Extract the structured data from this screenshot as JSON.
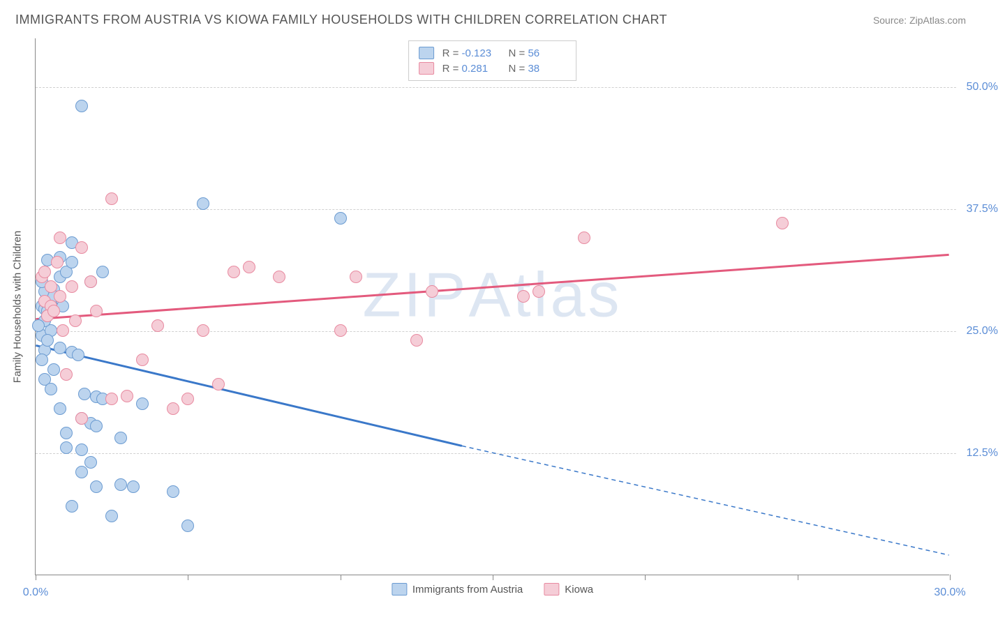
{
  "title": "IMMIGRANTS FROM AUSTRIA VS KIOWA FAMILY HOUSEHOLDS WITH CHILDREN CORRELATION CHART",
  "source": "Source: ZipAtlas.com",
  "watermark": "ZIPAtlas",
  "chart": {
    "type": "scatter",
    "y_axis_title": "Family Households with Children",
    "xlim": [
      0,
      30
    ],
    "ylim": [
      0,
      55
    ],
    "x_ticks": [
      0,
      5,
      10,
      15,
      20,
      25,
      30
    ],
    "x_tick_labels": {
      "0": "0.0%",
      "30": "30.0%"
    },
    "y_gridlines": [
      12.5,
      25.0,
      37.5,
      50.0
    ],
    "y_tick_labels": [
      "12.5%",
      "25.0%",
      "37.5%",
      "50.0%"
    ],
    "grid_color": "#d0d0d0",
    "axis_color": "#888888",
    "tick_label_color": "#5b8dd6",
    "background_color": "#ffffff",
    "point_radius": 9,
    "series": [
      {
        "name": "Immigrants from Austria",
        "marker_fill": "#bcd4ee",
        "marker_stroke": "#6b9bd1",
        "line_color": "#3a78c9",
        "line_width": 3,
        "R": "-0.123",
        "N": "56",
        "trend": {
          "x1": 0,
          "y1": 23.5,
          "x2": 14,
          "y2": 13.2,
          "dash_from_x": 14,
          "dash_to_x": 30,
          "dash_to_y": 2.0
        },
        "points": [
          [
            0.2,
            27.5
          ],
          [
            0.3,
            27.2
          ],
          [
            0.4,
            27.0
          ],
          [
            0.3,
            28.0
          ],
          [
            0.5,
            27.8
          ],
          [
            0.3,
            29.0
          ],
          [
            0.6,
            29.2
          ],
          [
            0.8,
            30.5
          ],
          [
            1.0,
            31.0
          ],
          [
            0.4,
            32.2
          ],
          [
            1.2,
            32.0
          ],
          [
            1.8,
            30.0
          ],
          [
            0.2,
            24.5
          ],
          [
            0.5,
            25.0
          ],
          [
            0.3,
            23.0
          ],
          [
            0.8,
            23.2
          ],
          [
            1.2,
            22.8
          ],
          [
            1.4,
            22.5
          ],
          [
            0.6,
            21.0
          ],
          [
            0.3,
            20.0
          ],
          [
            1.6,
            18.5
          ],
          [
            2.0,
            18.2
          ],
          [
            2.2,
            18.0
          ],
          [
            1.5,
            16.0
          ],
          [
            1.8,
            15.5
          ],
          [
            2.0,
            15.2
          ],
          [
            2.8,
            14.0
          ],
          [
            1.0,
            13.0
          ],
          [
            1.5,
            12.8
          ],
          [
            1.8,
            11.5
          ],
          [
            2.0,
            9.0
          ],
          [
            2.8,
            9.2
          ],
          [
            3.2,
            9.0
          ],
          [
            1.2,
            7.0
          ],
          [
            2.5,
            6.0
          ],
          [
            5.0,
            5.0
          ],
          [
            4.5,
            8.5
          ],
          [
            1.5,
            48.0
          ],
          [
            5.5,
            38.0
          ],
          [
            10.0,
            36.5
          ],
          [
            1.2,
            34.0
          ],
          [
            2.2,
            31.0
          ],
          [
            0.8,
            32.5
          ],
          [
            0.3,
            26.0
          ],
          [
            0.1,
            25.5
          ],
          [
            0.5,
            19.0
          ],
          [
            0.8,
            17.0
          ],
          [
            1.0,
            14.5
          ],
          [
            1.5,
            10.5
          ],
          [
            3.5,
            17.5
          ],
          [
            0.4,
            26.5
          ],
          [
            0.6,
            28.5
          ],
          [
            0.2,
            30.0
          ],
          [
            0.9,
            27.5
          ],
          [
            0.4,
            24.0
          ],
          [
            0.2,
            22.0
          ]
        ]
      },
      {
        "name": "Kiowa",
        "marker_fill": "#f5cdd7",
        "marker_stroke": "#e88aa0",
        "line_color": "#e35a7d",
        "line_width": 3,
        "R": "0.281",
        "N": "38",
        "trend": {
          "x1": 0,
          "y1": 26.2,
          "x2": 30,
          "y2": 32.8
        },
        "points": [
          [
            0.3,
            28.0
          ],
          [
            0.5,
            27.5
          ],
          [
            0.8,
            28.5
          ],
          [
            0.4,
            26.5
          ],
          [
            0.6,
            27.0
          ],
          [
            1.2,
            29.5
          ],
          [
            1.5,
            33.5
          ],
          [
            2.5,
            38.5
          ],
          [
            1.8,
            30.0
          ],
          [
            0.9,
            25.0
          ],
          [
            1.0,
            20.5
          ],
          [
            1.5,
            16.0
          ],
          [
            2.5,
            18.0
          ],
          [
            3.0,
            18.3
          ],
          [
            3.5,
            22.0
          ],
          [
            4.0,
            25.5
          ],
          [
            5.0,
            18.0
          ],
          [
            5.5,
            25.0
          ],
          [
            6.5,
            31.0
          ],
          [
            7.0,
            31.5
          ],
          [
            8.0,
            30.5
          ],
          [
            10.5,
            30.5
          ],
          [
            10.0,
            25.0
          ],
          [
            12.5,
            24.0
          ],
          [
            13.0,
            29.0
          ],
          [
            16.0,
            28.5
          ],
          [
            16.5,
            29.0
          ],
          [
            18.0,
            34.5
          ],
          [
            24.5,
            36.0
          ],
          [
            0.2,
            30.5
          ],
          [
            0.7,
            32.0
          ],
          [
            1.3,
            26.0
          ],
          [
            2.0,
            27.0
          ],
          [
            6.0,
            19.5
          ],
          [
            4.5,
            17.0
          ],
          [
            0.5,
            29.5
          ],
          [
            0.3,
            31.0
          ],
          [
            0.8,
            34.5
          ]
        ]
      }
    ]
  },
  "legend_bottom": [
    {
      "label": "Immigrants from Austria"
    },
    {
      "label": "Kiowa"
    }
  ]
}
